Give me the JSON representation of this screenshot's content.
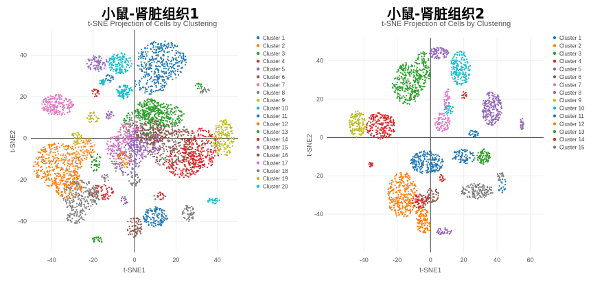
{
  "chart_data": [
    {
      "type": "scatter",
      "heading": "小鼠-肾脏组织1",
      "title": "t-SNE Projection of Cells by Clustering",
      "xlabel": "t-SNE1",
      "ylabel": "t-SNE2",
      "xlim": [
        -50,
        50
      ],
      "ylim": [
        -55,
        52
      ],
      "xticks": [
        -40,
        -20,
        0,
        20,
        40
      ],
      "yticks": [
        -40,
        -20,
        0,
        20,
        40
      ],
      "grid": true,
      "legend_position": "right",
      "series": [
        {
          "name": "Cluster 1",
          "color": "#1f77b4",
          "blobs": [
            [
              13,
              37,
              12,
              10,
              340
            ],
            [
              8,
              26,
              8,
              5,
              80
            ]
          ]
        },
        {
          "name": "Cluster 2",
          "color": "#ff7f0e",
          "blobs": [
            [
              -37,
              -13,
              12,
              11,
              360
            ],
            [
              -25,
              -5,
              6,
              6,
              80
            ]
          ]
        },
        {
          "name": "Cluster 3",
          "color": "#2ca02c",
          "blobs": [
            [
              14,
              11,
              10,
              6,
              240
            ],
            [
              2,
              7,
              8,
              7,
              150
            ],
            [
              -19,
              -11,
              3,
              5,
              40
            ],
            [
              -18,
              -49,
              3,
              1.5,
              25
            ]
          ]
        },
        {
          "name": "Cluster 4",
          "color": "#d62728",
          "blobs": [
            [
              32,
              -5,
              9,
              10,
              260
            ],
            [
              -16,
              -26,
              6,
              4,
              70
            ],
            [
              12,
              -28,
              3,
              2,
              20
            ]
          ]
        },
        {
          "name": "Cluster 5",
          "color": "#9467bd",
          "blobs": [
            [
              -4,
              -8,
              8,
              10,
              200
            ],
            [
              -18,
              36,
              5,
              4,
              80
            ],
            [
              -12,
              11,
              2,
              2,
              20
            ]
          ]
        },
        {
          "name": "Cluster 6",
          "color": "#8c564b",
          "blobs": [
            [
              17,
              -3,
              11,
              11,
              280
            ],
            [
              0,
              -43,
              4,
              5,
              70
            ]
          ]
        },
        {
          "name": "Cluster 7",
          "color": "#e377c2",
          "blobs": [
            [
              -2,
              3,
              6,
              6,
              120
            ],
            [
              -10,
              -4,
              4,
              6,
              60
            ]
          ]
        },
        {
          "name": "Cluster 8",
          "color": "#7f7f7f",
          "blobs": [
            [
              -26,
              -28,
              9,
              8,
              230
            ],
            [
              26,
              -36,
              3,
              4,
              50
            ],
            [
              33,
              23,
              3,
              1.5,
              20
            ],
            [
              -28,
              -38,
              5,
              3,
              50
            ]
          ]
        },
        {
          "name": "Cluster 9",
          "color": "#bcbd22",
          "blobs": [
            [
              43,
              0,
              5,
              9,
              160
            ],
            [
              -28,
              0,
              3,
              3,
              30
            ]
          ]
        },
        {
          "name": "Cluster 10",
          "color": "#17becf",
          "blobs": [
            [
              -7,
              36,
              6,
              5,
              150
            ],
            [
              -5,
              21,
              3,
              2,
              30
            ],
            [
              38,
              -30,
              3,
              1.5,
              25
            ],
            [
              -15,
              27,
              1.5,
              1.5,
              12
            ]
          ]
        },
        {
          "name": "Cluster 11",
          "color": "#1f77b4",
          "blobs": [
            [
              10,
              -38,
              6,
              5,
              130
            ],
            [
              -12,
              29,
              2,
              2,
              20
            ]
          ]
        },
        {
          "name": "Cluster 12",
          "color": "#ff7f0e",
          "blobs": [
            [
              -32,
              -22,
              7,
              7,
              140
            ],
            [
              -5,
              -10,
              4,
              4,
              40
            ]
          ]
        },
        {
          "name": "Cluster 13",
          "color": "#2ca02c",
          "blobs": [
            [
              7,
              14,
              6,
              5,
              140
            ],
            [
              31,
              25,
              2,
              1.5,
              15
            ]
          ]
        },
        {
          "name": "Cluster 14",
          "color": "#d62728",
          "blobs": [
            [
              24,
              -12,
              9,
              7,
              160
            ],
            [
              -19,
              22,
              2,
              2,
              20
            ]
          ]
        },
        {
          "name": "Cluster 15",
          "color": "#9467bd",
          "blobs": [
            [
              5,
              -3,
              8,
              7,
              150
            ],
            [
              -5,
              -30,
              2,
              2,
              20
            ]
          ]
        },
        {
          "name": "Cluster 16",
          "color": "#8c564b",
          "blobs": [
            [
              8,
              3,
              8,
              6,
              150
            ]
          ]
        },
        {
          "name": "Cluster 17",
          "color": "#e377c2",
          "blobs": [
            [
              -37,
              16,
              8,
              5,
              200
            ]
          ]
        },
        {
          "name": "Cluster 18",
          "color": "#7f7f7f",
          "blobs": [
            [
              0,
              -20,
              3,
              3,
              35
            ],
            [
              -14,
              -19,
              2,
              2,
              15
            ]
          ]
        },
        {
          "name": "Cluster 19",
          "color": "#bcbd22",
          "blobs": [
            [
              -20,
              10,
              3,
              3,
              30
            ]
          ]
        },
        {
          "name": "Cluster 20",
          "color": "#17becf",
          "blobs": [
            [
              -5,
              23,
              4,
              2.5,
              60
            ],
            [
              -16,
              27,
              1.5,
              1.5,
              10
            ]
          ]
        }
      ]
    },
    {
      "type": "scatter",
      "heading": "小鼠-肾脏组织2",
      "title": "t-SNE Projection of Cells by Clustering",
      "xlabel": "t-SNE1",
      "ylabel": "t-SNE2",
      "xlim": [
        -62,
        68
      ],
      "ylim": [
        -60,
        52
      ],
      "xticks": [
        -40,
        -20,
        0,
        20,
        40,
        60
      ],
      "yticks": [
        -40,
        -20,
        0,
        20,
        40
      ],
      "grid": true,
      "legend_position": "right",
      "series": [
        {
          "name": "Cluster 1",
          "color": "#1f77b4",
          "blobs": [
            [
              -2,
              -13,
              10,
              6,
              230
            ],
            [
              20,
              -10,
              7,
              4,
              80
            ],
            [
              43,
              -25,
              3,
              4,
              20
            ]
          ]
        },
        {
          "name": "Cluster 2",
          "color": "#ff7f0e",
          "blobs": [
            [
              -17,
              -30,
              9,
              12,
              300
            ],
            [
              -5,
              -40,
              4,
              5,
              70
            ]
          ]
        },
        {
          "name": "Cluster 3",
          "color": "#2ca02c",
          "blobs": [
            [
              -14,
              28,
              9,
              11,
              280
            ],
            [
              32,
              -10,
              4,
              4,
              80
            ]
          ]
        },
        {
          "name": "Cluster 4",
          "color": "#d62728",
          "blobs": [
            [
              -30,
              6,
              9,
              7,
              210
            ],
            [
              -36,
              -14,
              1.5,
              1.5,
              15
            ],
            [
              20,
              22,
              2,
              2,
              15
            ]
          ]
        },
        {
          "name": "Cluster 5",
          "color": "#9467bd",
          "blobs": [
            [
              37,
              15,
              6,
              9,
              220
            ],
            [
              55,
              7,
              1.2,
              3,
              25
            ],
            [
              8,
              -49,
              5,
              2,
              40
            ]
          ]
        },
        {
          "name": "Cluster 6",
          "color": "#8c564b",
          "blobs": [
            [
              1,
              -30,
              4,
              4,
              50
            ]
          ]
        },
        {
          "name": "Cluster 7",
          "color": "#e377c2",
          "blobs": [
            [
              7,
              8,
              5,
              5,
              90
            ],
            [
              10,
              20,
              2,
              6,
              50
            ]
          ]
        },
        {
          "name": "Cluster 8",
          "color": "#7f7f7f",
          "blobs": [
            [
              28,
              -28,
              10,
              4,
              140
            ],
            [
              42,
              -20,
              2,
              2,
              20
            ]
          ]
        },
        {
          "name": "Cluster 9",
          "color": "#bcbd22",
          "blobs": [
            [
              -44,
              7,
              5,
              7,
              140
            ]
          ]
        },
        {
          "name": "Cluster 10",
          "color": "#17becf",
          "blobs": [
            [
              18,
              36,
              6,
              9,
              190
            ],
            [
              11,
              15,
              3,
              3,
              30
            ]
          ]
        },
        {
          "name": "Cluster 11",
          "color": "#1f77b4",
          "blobs": [
            [
              26,
              2,
              3,
              2,
              30
            ]
          ]
        },
        {
          "name": "Cluster 12",
          "color": "#ff7f0e",
          "blobs": [
            [
              -4,
              -46,
              4,
              4,
              60
            ]
          ]
        },
        {
          "name": "Cluster 13",
          "color": "#2ca02c",
          "blobs": [
            [
              -5,
              35,
              5,
              10,
              120
            ]
          ]
        },
        {
          "name": "Cluster 14",
          "color": "#d62728",
          "blobs": [
            [
              -6,
              -33,
              5,
              4,
              70
            ],
            [
              7,
              -21,
              2,
              2,
              15
            ]
          ]
        },
        {
          "name": "Cluster 15",
          "color": "#9467bd",
          "blobs": [
            [
              5,
              44,
              6,
              3,
              90
            ]
          ]
        }
      ]
    }
  ]
}
